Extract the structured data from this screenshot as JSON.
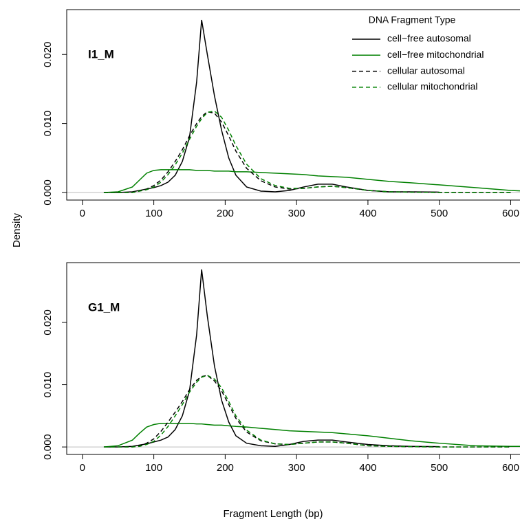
{
  "axis_labels": {
    "y": "Density",
    "x": "Fragment Length (bp)"
  },
  "chart_data": [
    {
      "type": "line",
      "label": "I1_M",
      "legend_title": "DNA Fragment Type",
      "legend": "top-right",
      "x": [
        30,
        50,
        70,
        80,
        90,
        100,
        110,
        120,
        130,
        140,
        150,
        160,
        167,
        175,
        185,
        195,
        205,
        215,
        230,
        250,
        270,
        290,
        310,
        330,
        350,
        370,
        400,
        430,
        460,
        500,
        550,
        600,
        620
      ],
      "xlim": [
        -22,
        614
      ],
      "ylim": [
        -0.0011,
        0.0265
      ],
      "xticks": [
        0,
        100,
        200,
        300,
        400,
        500,
        600
      ],
      "yticks": [
        {
          "value": 0,
          "label": "0.000"
        },
        {
          "value": 0.01,
          "label": "0.010"
        },
        {
          "value": 0.02,
          "label": "0.020"
        }
      ],
      "series": [
        {
          "name": "cell−free autosomal",
          "color": "#000000",
          "dash": "solid",
          "values": [
            0,
            0,
            0.0001,
            0.0003,
            0.0005,
            0.0007,
            0.001,
            0.0015,
            0.0025,
            0.0045,
            0.008,
            0.016,
            0.025,
            0.02,
            0.014,
            0.009,
            0.005,
            0.0025,
            0.0008,
            0.0002,
            0.0001,
            0.0003,
            0.0008,
            0.0012,
            0.0012,
            0.0008,
            0.0003,
            0.0001,
            0.0001,
            5e-05,
            null,
            null,
            null
          ]
        },
        {
          "name": "cell−free mitochondrial",
          "color": "#008000",
          "dash": "solid",
          "values": [
            0,
            0.0001,
            0.0008,
            0.0018,
            0.0028,
            0.0032,
            0.0033,
            0.0033,
            0.0033,
            0.0033,
            0.0033,
            0.0032,
            0.0032,
            0.0032,
            0.0031,
            0.0031,
            0.0031,
            0.003,
            0.003,
            0.0029,
            0.0028,
            0.0027,
            0.0026,
            0.0024,
            0.0023,
            0.0022,
            0.0019,
            0.0016,
            0.0014,
            0.0011,
            0.0007,
            0.0003,
            0.0002
          ]
        },
        {
          "name": "cellular autosomal",
          "color": "#000000",
          "dash": "dashed",
          "values": [
            0,
            0,
            0,
            0.0002,
            0.0005,
            0.001,
            0.0018,
            0.003,
            0.0045,
            0.0062,
            0.0082,
            0.01,
            0.011,
            0.0117,
            0.0115,
            0.0102,
            0.0082,
            0.006,
            0.0035,
            0.0017,
            0.0008,
            0.0005,
            0.0006,
            0.0008,
            0.0009,
            0.0007,
            0.0003,
            0.0001,
            5e-05,
            0,
            0,
            0,
            null
          ]
        },
        {
          "name": "cellular mitochondrial",
          "color": "#008000",
          "dash": "dashed",
          "values": [
            0,
            0,
            0,
            0.0002,
            0.0004,
            0.0008,
            0.0015,
            0.0026,
            0.004,
            0.0057,
            0.0077,
            0.0096,
            0.0107,
            0.0116,
            0.0118,
            0.0109,
            0.009,
            0.0068,
            0.0041,
            0.002,
            0.001,
            0.0006,
            0.0006,
            0.0008,
            0.0009,
            0.0007,
            0.0003,
            0.0001,
            5e-05,
            0,
            0,
            0,
            null
          ]
        }
      ]
    },
    {
      "type": "line",
      "label": "G1_M",
      "legend": false,
      "x": [
        30,
        50,
        70,
        80,
        90,
        100,
        110,
        120,
        130,
        140,
        150,
        160,
        167,
        175,
        185,
        195,
        205,
        215,
        230,
        250,
        270,
        290,
        310,
        330,
        350,
        370,
        400,
        430,
        460,
        500,
        550,
        600,
        620
      ],
      "xlim": [
        -22,
        614
      ],
      "ylim": [
        -0.0012,
        0.0296
      ],
      "xticks": [
        0,
        100,
        200,
        300,
        400,
        500,
        600
      ],
      "yticks": [
        {
          "value": 0,
          "label": "0.000"
        },
        {
          "value": 0.01,
          "label": "0.010"
        },
        {
          "value": 0.02,
          "label": "0.020"
        }
      ],
      "series": [
        {
          "name": "cell−free autosomal",
          "color": "#000000",
          "dash": "solid",
          "values": [
            0,
            0,
            0.0001,
            0.0003,
            0.0005,
            0.0008,
            0.0011,
            0.0016,
            0.0028,
            0.005,
            0.009,
            0.018,
            0.0285,
            0.021,
            0.013,
            0.0075,
            0.004,
            0.0018,
            0.0006,
            0.0002,
            0.0001,
            0.0004,
            0.0009,
            0.0011,
            0.0011,
            0.0008,
            0.0004,
            0.0002,
            0.0001,
            5e-05,
            null,
            null,
            null
          ]
        },
        {
          "name": "cell−free mitochondrial",
          "color": "#008000",
          "dash": "solid",
          "values": [
            0,
            0.0002,
            0.0011,
            0.0022,
            0.0032,
            0.0036,
            0.0038,
            0.0038,
            0.0038,
            0.0038,
            0.0038,
            0.0037,
            0.0037,
            0.0036,
            0.0035,
            0.0035,
            0.0034,
            0.0033,
            0.0032,
            0.003,
            0.0028,
            0.0026,
            0.0025,
            0.0024,
            0.0023,
            0.0021,
            0.0018,
            0.0014,
            0.001,
            0.0006,
            0.0002,
            0.0001,
            0.0001
          ]
        },
        {
          "name": "cellular autosomal",
          "color": "#000000",
          "dash": "dashed",
          "values": [
            0,
            0,
            0,
            0.0002,
            0.0006,
            0.0013,
            0.0025,
            0.004,
            0.0056,
            0.0073,
            0.0092,
            0.0107,
            0.0113,
            0.0115,
            0.0106,
            0.009,
            0.0068,
            0.0046,
            0.0024,
            0.001,
            0.0005,
            0.0004,
            0.0006,
            0.0008,
            0.0008,
            0.0006,
            0.0002,
            0.0001,
            5e-05,
            0,
            0,
            0,
            null
          ]
        },
        {
          "name": "cellular mitochondrial",
          "color": "#008000",
          "dash": "dashed",
          "values": [
            0,
            0,
            0,
            0.0001,
            0.0004,
            0.0009,
            0.0019,
            0.0033,
            0.005,
            0.0068,
            0.0088,
            0.0104,
            0.0112,
            0.0115,
            0.0109,
            0.0095,
            0.0073,
            0.005,
            0.0027,
            0.0011,
            0.0005,
            0.0004,
            0.0006,
            0.0008,
            0.0008,
            0.0006,
            0.0002,
            0.0001,
            5e-05,
            0,
            0,
            0,
            null
          ]
        }
      ]
    }
  ]
}
